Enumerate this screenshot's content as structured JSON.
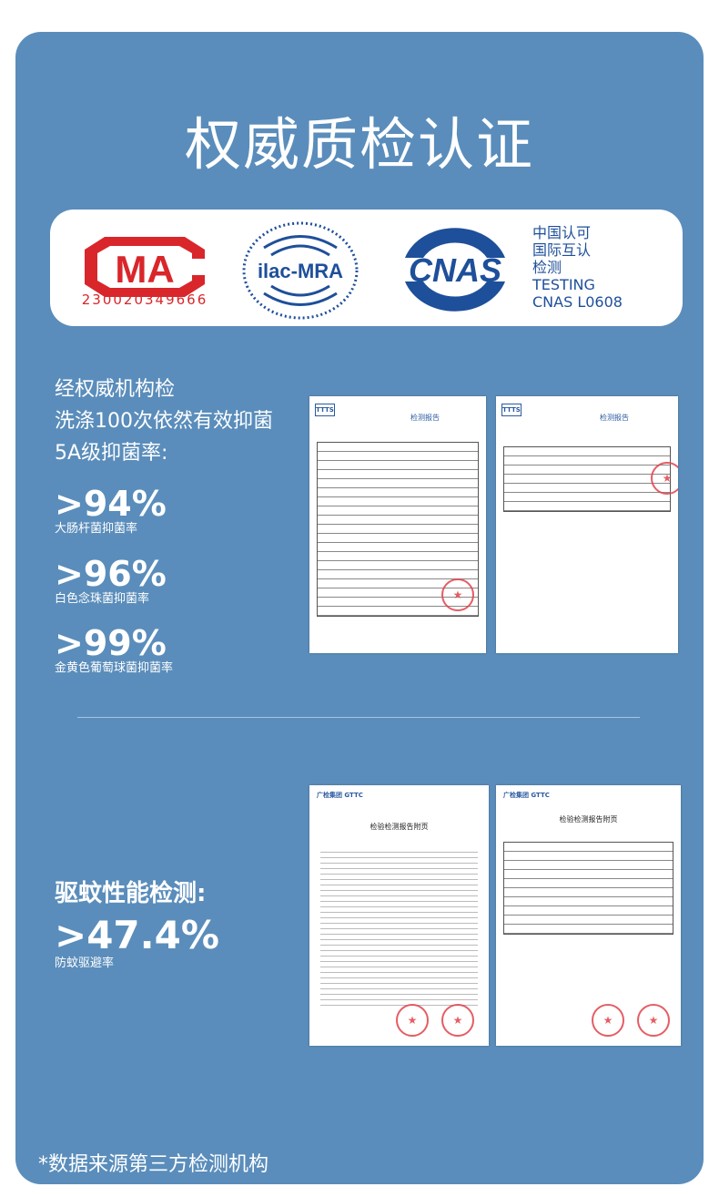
{
  "title": "权威质检认证",
  "logos": {
    "cma": {
      "text": "MA",
      "number": "230020349666",
      "color": "#d9262b"
    },
    "ilac": {
      "text": "ilac-MRA"
    },
    "cnas": {
      "text": "CNAS",
      "lines": [
        "中国认可",
        "国际互认",
        "检测",
        "TESTING",
        "CNAS L0608"
      ],
      "color": "#1e4f9a"
    }
  },
  "antibacterial": {
    "intro": [
      "经权威机构检",
      "洗涤100次依然有效抑菌",
      "5A级抑菌率:"
    ],
    "stats": [
      {
        "value": ">94%",
        "label": "大肠杆菌抑菌率"
      },
      {
        "value": ">96%",
        "label": "白色念珠菌抑菌率"
      },
      {
        "value": ">99%",
        "label": "金黄色葡萄球菌抑菌率"
      }
    ],
    "docs": [
      {
        "brand": "TTTS",
        "title": "检测报告"
      },
      {
        "brand": "TTTS",
        "title": "检测报告"
      }
    ]
  },
  "mosquito": {
    "heading": "驱蚊性能检测:",
    "value": ">47.4%",
    "label": "防蚊驱避率",
    "docs": [
      {
        "brand": "广检集团 GTTC",
        "title": "检验检测报告附页"
      },
      {
        "brand": "广检集团 GTTC",
        "title": "检验检测报告附页"
      }
    ]
  },
  "footnote": "*数据来源第三方检测机构",
  "colors": {
    "card": "#5a8dbb",
    "text": "#ffffff"
  }
}
